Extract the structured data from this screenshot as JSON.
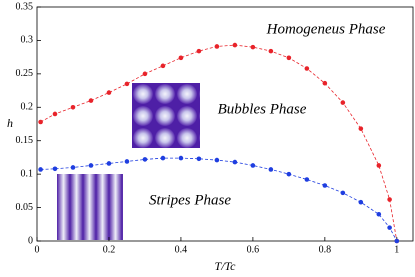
{
  "chart_data": {
    "type": "scatter-line",
    "xlabel": "T/Tc",
    "ylabel": "h",
    "annotations": [
      "Homogeneus Phase",
      "Bubbles Phase",
      "Stripes Phase"
    ],
    "x": [
      0.01,
      0.05,
      0.1,
      0.15,
      0.2,
      0.25,
      0.3,
      0.35,
      0.4,
      0.45,
      0.5,
      0.55,
      0.6,
      0.65,
      0.7,
      0.75,
      0.8,
      0.85,
      0.9,
      0.95,
      0.98,
      1.0
    ],
    "series": [
      {
        "color": "#e8232a",
        "values": [
          0.178,
          0.19,
          0.2,
          0.21,
          0.222,
          0.235,
          0.25,
          0.262,
          0.274,
          0.284,
          0.291,
          0.293,
          0.29,
          0.284,
          0.274,
          0.258,
          0.236,
          0.207,
          0.168,
          0.113,
          0.062,
          0
        ]
      },
      {
        "color": "#1f3ee0",
        "values": [
          0.107,
          0.108,
          0.11,
          0.113,
          0.116,
          0.119,
          0.122,
          0.124,
          0.124,
          0.123,
          0.121,
          0.118,
          0.113,
          0.107,
          0.1,
          0.092,
          0.083,
          0.072,
          0.058,
          0.04,
          0.02,
          0
        ]
      }
    ],
    "xlim": [
      0,
      1.045
    ],
    "ylim": [
      0,
      0.35
    ],
    "xticks": [
      0,
      0.2,
      0.4,
      0.6,
      0.8,
      1
    ],
    "yticks": [
      0,
      0.05,
      0.1,
      0.15,
      0.2,
      0.25,
      0.3,
      0.35
    ]
  }
}
